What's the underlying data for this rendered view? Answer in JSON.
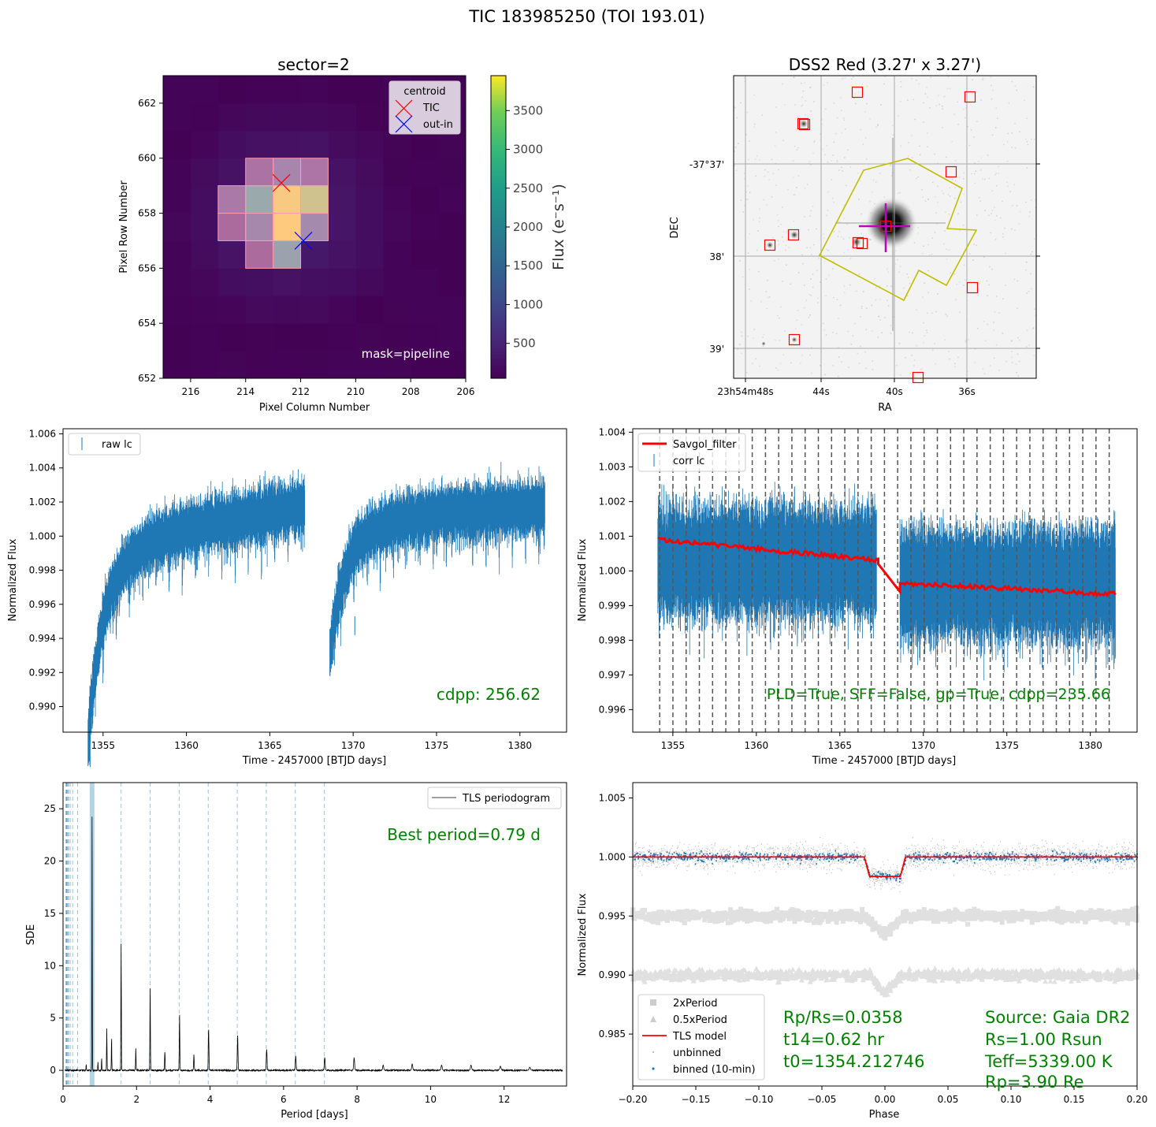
{
  "suptitle": "TIC 183985250 (TOI 193.01)",
  "chart_data": [
    {
      "id": "tpf",
      "type": "heatmap",
      "title": "sector=2",
      "xlabel": "Pixel Column Number",
      "ylabel": "Pixel Row Number",
      "xlim": [
        217,
        206
      ],
      "ylim": [
        652,
        663
      ],
      "xticks": [
        "216",
        "214",
        "212",
        "210",
        "208",
        "206"
      ],
      "yticks": [
        "652",
        "654",
        "656",
        "658",
        "660",
        "662"
      ],
      "colorbar_label": "Flux ($e^{-}s^{-1}$)",
      "colorbar_label_text": "Flux (e⁻s⁻¹)",
      "colorbar_range": [
        50,
        3950
      ],
      "colorbar_ticks": [
        "500",
        "1000",
        "1500",
        "2000",
        "2500",
        "3000",
        "3500"
      ],
      "annotation": "mask=pipeline",
      "legend_title": "centroid",
      "legend": [
        "TIC",
        "out-in"
      ],
      "centroid_tic": [
        212.7,
        659.1
      ],
      "centroid_outin": [
        211.9,
        657.0
      ],
      "bright_pixels": [
        {
          "col": 212.5,
          "row": 659.5,
          "v": 1100
        },
        {
          "col": 213.5,
          "row": 658.5,
          "v": 2500
        },
        {
          "col": 212.5,
          "row": 658.5,
          "v": 3900
        },
        {
          "col": 211.5,
          "row": 658.5,
          "v": 3600
        },
        {
          "col": 212.5,
          "row": 657.5,
          "v": 3950
        },
        {
          "col": 213.5,
          "row": 657.5,
          "v": 1200
        },
        {
          "col": 211.5,
          "row": 657.5,
          "v": 1300
        },
        {
          "col": 212.5,
          "row": 656.5,
          "v": 2200
        },
        {
          "col": 214.5,
          "row": 658.5,
          "v": 700
        },
        {
          "col": 211.5,
          "row": 659.5,
          "v": 600
        },
        {
          "col": 213.5,
          "row": 659.5,
          "v": 500
        }
      ],
      "mask_pixels": [
        [
          213.5,
          659.5
        ],
        [
          212.5,
          659.5
        ],
        [
          211.5,
          659.5
        ],
        [
          214.5,
          658.5
        ],
        [
          213.5,
          658.5
        ],
        [
          212.5,
          658.5
        ],
        [
          211.5,
          658.5
        ],
        [
          214.5,
          657.5
        ],
        [
          213.5,
          657.5
        ],
        [
          212.5,
          657.5
        ],
        [
          211.5,
          657.5
        ],
        [
          213.5,
          656.5
        ],
        [
          212.5,
          656.5
        ]
      ]
    },
    {
      "id": "dss",
      "type": "scatter",
      "title": "DSS2 Red (3.27' x 3.27')",
      "xlabel": "RA",
      "ylabel": "DEC",
      "xticks": [
        "23h54m48s",
        "44s",
        "40s",
        "36s"
      ],
      "yticks": [
        "-37°37'",
        "38'",
        "39'"
      ]
    },
    {
      "id": "rawlc",
      "type": "line",
      "xlabel": "Time - 2457000 [BTJD days]",
      "ylabel": "Normalized Flux",
      "xlim": [
        1352.6,
        1382.8
      ],
      "ylim": [
        0.9885,
        1.0063
      ],
      "xticks": [
        1355,
        1360,
        1365,
        1370,
        1375,
        1380
      ],
      "yticks": [
        "0.990",
        "0.992",
        "0.994",
        "0.996",
        "0.998",
        "1.000",
        "1.002",
        "1.004",
        "1.006"
      ],
      "legend": [
        "raw lc"
      ],
      "annotation": "cdpp: 256.62",
      "segments": [
        [
          1354.1,
          1367.1
        ],
        [
          1368.6,
          1381.5
        ]
      ]
    },
    {
      "id": "corrlc",
      "type": "line",
      "xlabel": "Time - 2457000 [BTJD days]",
      "ylabel": "Normalized Flux",
      "xlim": [
        1352.6,
        1382.8
      ],
      "ylim": [
        0.99535,
        1.0041
      ],
      "xticks": [
        1355,
        1360,
        1365,
        1370,
        1375,
        1380
      ],
      "yticks": [
        "0.996",
        "0.997",
        "0.998",
        "0.999",
        "1.000",
        "1.001",
        "1.002",
        "1.003",
        "1.004"
      ],
      "legend": [
        "Savgol_filter",
        "corr lc"
      ],
      "annotation": "PLD=True, SFF=False, gp=True, cdpp=235.66",
      "period": 0.7917,
      "t0": 1354.212746
    },
    {
      "id": "tls",
      "type": "line",
      "xlabel": "Period [days]",
      "ylabel": "SDE",
      "xlim": [
        0,
        13.7
      ],
      "ylim": [
        -1.5,
        27.5
      ],
      "xticks": [
        0,
        2,
        4,
        6,
        8,
        10,
        12
      ],
      "yticks": [
        0,
        5,
        10,
        15,
        20,
        25
      ],
      "legend": [
        "TLS periodogram"
      ],
      "annotation": "Best period=0.79 d",
      "best_period": 0.79,
      "peaks": [
        {
          "p": 0.79,
          "sde": 26.2
        },
        {
          "p": 1.58,
          "sde": 12.1
        },
        {
          "p": 2.37,
          "sde": 8.2
        },
        {
          "p": 3.17,
          "sde": 5.3
        },
        {
          "p": 3.96,
          "sde": 4.0
        },
        {
          "p": 4.75,
          "sde": 3.4
        },
        {
          "p": 5.54,
          "sde": 2.0
        },
        {
          "p": 6.33,
          "sde": 1.4
        },
        {
          "p": 7.12,
          "sde": 1.2
        },
        {
          "p": 7.92,
          "sde": 1.2
        },
        {
          "p": 8.71,
          "sde": 0.5
        },
        {
          "p": 9.5,
          "sde": 0.6
        },
        {
          "p": 10.3,
          "sde": 0.5
        },
        {
          "p": 11.1,
          "sde": 0.5
        },
        {
          "p": 11.9,
          "sde": 0.4
        },
        {
          "p": 12.7,
          "sde": 0.3
        },
        {
          "p": 1.19,
          "sde": 4.0
        },
        {
          "p": 1.32,
          "sde": 3.2
        },
        {
          "p": 1.98,
          "sde": 2.2
        },
        {
          "p": 2.77,
          "sde": 1.8
        },
        {
          "p": 3.56,
          "sde": 1.5
        },
        {
          "p": 0.63,
          "sde": 0.6
        },
        {
          "p": 1.05,
          "sde": 1.2
        },
        {
          "p": 0.95,
          "sde": 0.8
        }
      ]
    },
    {
      "id": "fold",
      "type": "scatter",
      "xlabel": "Phase",
      "ylabel": "Normalized Flux",
      "xlim": [
        -0.2,
        0.2
      ],
      "ylim": [
        0.9806,
        1.0063
      ],
      "xticks": [
        "−0.20",
        "−0.15",
        "−0.10",
        "−0.05",
        "0.00",
        "0.05",
        "0.10",
        "0.15",
        "0.20"
      ],
      "yticks": [
        "0.985",
        "0.990",
        "0.995",
        "1.000",
        "1.005"
      ],
      "legend": [
        "2xPeriod",
        "0.5xPeriod",
        "TLS model",
        "unbinned",
        "binned (10-min)"
      ],
      "transit_depth": 0.00165,
      "transit_half_width": 0.0163,
      "fit_text": [
        "Rp/Rs=0.0358",
        "t14=0.62 hr",
        "t0=1354.212746"
      ],
      "star_text": [
        "Source: Gaia DR2",
        "Rs=1.00 Rsun",
        "Teff=5339.00 K",
        "Rp=3.90 Re"
      ]
    }
  ],
  "colors": {
    "lc": "#1f77b4",
    "savgol": "#ff0000",
    "annot": "#008000",
    "tls_line": "#000000",
    "dss_box": "#ff0000",
    "dss_poly": "#bfbf00",
    "dss_cross": "#bf00bf"
  }
}
